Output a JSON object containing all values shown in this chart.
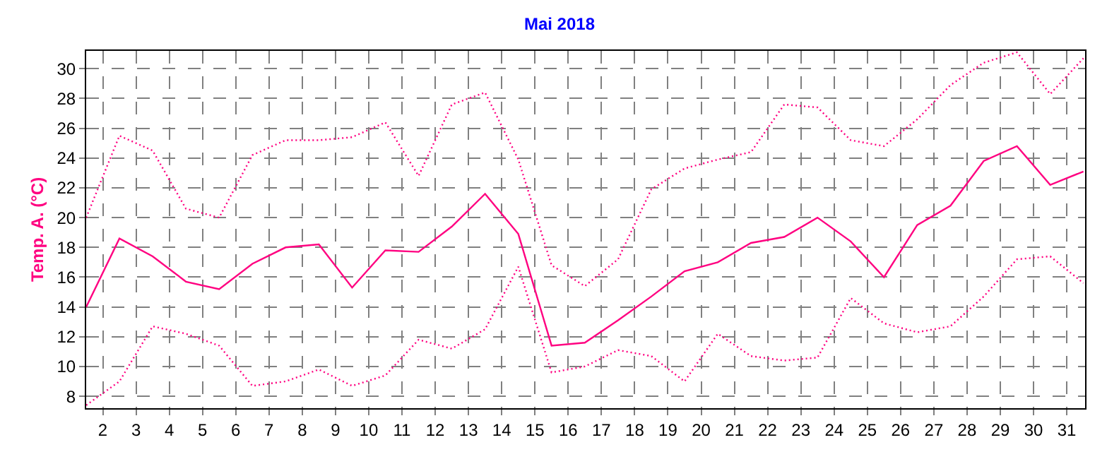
{
  "chart_data": {
    "type": "line",
    "title": "Mai 2018",
    "ylabel": "Temp. A. (°C)",
    "x": [
      1.5,
      2.5,
      3.5,
      4.5,
      5.5,
      6.5,
      7.5,
      8.5,
      9.5,
      10.5,
      11.5,
      12.5,
      13.5,
      14.5,
      15.5,
      16.5,
      17.5,
      18.5,
      19.5,
      20.5,
      21.5,
      22.5,
      23.5,
      24.5,
      25.5,
      26.5,
      27.5,
      28.5,
      29.5,
      30.5,
      31.5
    ],
    "series": [
      {
        "color": "#ff0080",
        "line_style": "dotted",
        "values": [
          20.0,
          25.5,
          24.5,
          20.6,
          20.0,
          24.2,
          25.2,
          25.2,
          25.4,
          26.4,
          22.8,
          27.6,
          28.4,
          23.9,
          16.8,
          15.4,
          17.2,
          21.9,
          23.3,
          23.9,
          24.4,
          27.6,
          27.4,
          25.2,
          24.8,
          26.6,
          28.9,
          30.4,
          31.1,
          28.3,
          30.7
        ]
      },
      {
        "color": "#ff0080",
        "line_style": "solid",
        "values": [
          14.0,
          18.6,
          17.4,
          15.7,
          15.2,
          16.9,
          18.0,
          18.2,
          15.3,
          17.8,
          17.7,
          19.4,
          21.6,
          18.9,
          11.4,
          11.6,
          13.1,
          14.7,
          16.4,
          17.0,
          18.3,
          18.7,
          20.0,
          18.4,
          16.0,
          19.5,
          20.8,
          23.8,
          24.8,
          22.2,
          23.1
        ]
      },
      {
        "color": "#ff0080",
        "line_style": "dotted",
        "values": [
          7.4,
          9.0,
          12.7,
          12.2,
          11.4,
          8.7,
          9.0,
          9.8,
          8.7,
          9.4,
          11.8,
          11.2,
          12.5,
          16.7,
          9.6,
          10.0,
          11.1,
          10.7,
          9.0,
          12.2,
          10.7,
          10.4,
          10.6,
          14.6,
          12.9,
          12.3,
          12.7,
          14.7,
          17.2,
          17.4,
          15.6
        ]
      }
    ],
    "xlim": [
      1.5,
      31.55
    ],
    "xticks": [
      2,
      3,
      4,
      5,
      6,
      7,
      8,
      9,
      10,
      11,
      12,
      13,
      14,
      15,
      16,
      17,
      18,
      19,
      20,
      21,
      22,
      23,
      24,
      25,
      26,
      27,
      28,
      29,
      30,
      31
    ],
    "ylim": [
      7.2,
      31.2
    ],
    "yticks": [
      8,
      10,
      12,
      14,
      16,
      18,
      20,
      22,
      24,
      26,
      28,
      30
    ],
    "grid": true,
    "marker": "none"
  }
}
